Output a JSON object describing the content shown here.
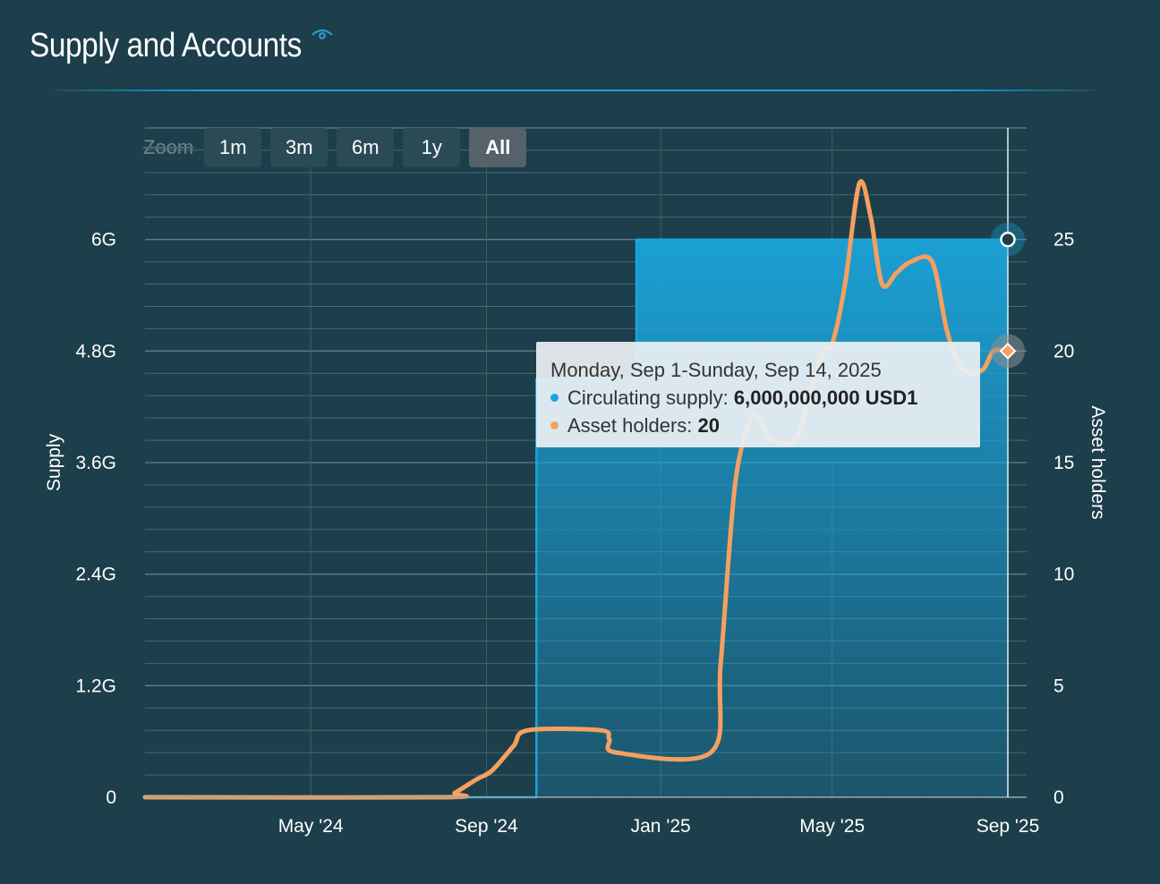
{
  "title": "Supply and Accounts",
  "icons": {
    "title_icon": "eye-icon"
  },
  "zoom": {
    "label": "Zoom",
    "buttons": [
      "1m",
      "3m",
      "6m",
      "1y",
      "All"
    ],
    "active": "All"
  },
  "tooltip": {
    "date": "Monday, Sep 1-Sunday, Sep 14, 2025",
    "series1_label": "Circulating supply:",
    "series1_value": "6,000,000,000 USD1",
    "series2_label": "Asset holders:",
    "series2_value": "20"
  },
  "colors": {
    "background": "#1d3e4b",
    "supply": "#1ba4db",
    "holders": "#f5a05e"
  },
  "chart_data": {
    "type": "area",
    "title": "Supply and Accounts",
    "x_ticks": [
      "May '24",
      "Sep '24",
      "Jan '25",
      "May '25",
      "Sep '25"
    ],
    "x_tick_dates": [
      "2024-05-01",
      "2024-09-01",
      "2025-01-01",
      "2025-05-01",
      "2025-09-01"
    ],
    "xlim": [
      "2024-01-06",
      "2025-09-01"
    ],
    "y_left": {
      "label": "Supply",
      "ticks": [
        "0",
        "1.2G",
        "2.4G",
        "3.6G",
        "4.8G",
        "6G"
      ],
      "lim": [
        0,
        7200000000
      ]
    },
    "y_right": {
      "label": "Asset holders",
      "ticks": [
        "0",
        "5",
        "10",
        "15",
        "20",
        "25"
      ],
      "lim": [
        0,
        30
      ]
    },
    "grid": true,
    "series": [
      {
        "name": "Circulating supply",
        "axis": "left",
        "type": "step-area",
        "points": [
          [
            "2024-01-06",
            0
          ],
          [
            "2024-10-06",
            0
          ],
          [
            "2024-10-06",
            4500000000
          ],
          [
            "2024-12-15",
            4500000000
          ],
          [
            "2024-12-15",
            6000000000
          ],
          [
            "2025-09-01",
            6000000000
          ]
        ]
      },
      {
        "name": "Asset holders",
        "axis": "right",
        "type": "line",
        "points": [
          [
            "2024-01-06",
            0
          ],
          [
            "2024-08-01",
            0
          ],
          [
            "2024-08-10",
            0.2
          ],
          [
            "2024-08-25",
            0.8
          ],
          [
            "2024-09-05",
            1.2
          ],
          [
            "2024-09-20",
            2.3
          ],
          [
            "2024-09-30",
            3
          ],
          [
            "2024-11-20",
            3
          ],
          [
            "2024-11-26",
            2.6
          ],
          [
            "2024-12-01",
            2
          ],
          [
            "2025-02-05",
            2
          ],
          [
            "2025-02-12",
            6
          ],
          [
            "2025-02-22",
            14
          ],
          [
            "2025-03-05",
            17
          ],
          [
            "2025-03-10",
            17
          ],
          [
            "2025-03-20",
            16
          ],
          [
            "2025-04-05",
            16
          ],
          [
            "2025-04-15",
            18
          ],
          [
            "2025-04-25",
            20
          ],
          [
            "2025-05-01",
            20.3
          ],
          [
            "2025-05-10",
            23
          ],
          [
            "2025-05-20",
            27.5
          ],
          [
            "2025-05-28",
            26
          ],
          [
            "2025-06-05",
            23
          ],
          [
            "2025-06-15",
            23.5
          ],
          [
            "2025-06-25",
            24
          ],
          [
            "2025-07-10",
            24
          ],
          [
            "2025-07-20",
            21
          ],
          [
            "2025-07-28",
            19.5
          ],
          [
            "2025-08-05",
            19
          ],
          [
            "2025-08-15",
            19.2
          ],
          [
            "2025-08-22",
            20
          ],
          [
            "2025-09-01",
            20
          ]
        ]
      }
    ]
  }
}
